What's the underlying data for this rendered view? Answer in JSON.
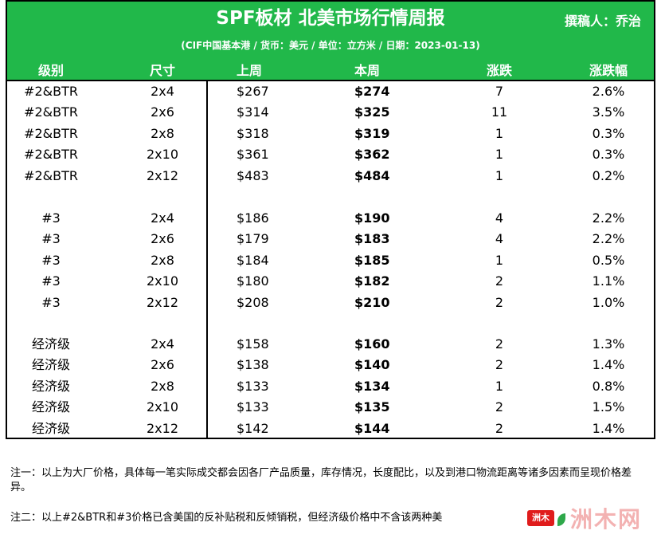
{
  "header": {
    "title": "SPF板材 北美市场行情周报",
    "author": "撰稿人：乔治",
    "subtitle": "(CIF中国基本港 / 货币：美元 / 单位：立方米 / 日期：2023-01-13)",
    "background_color": "#21b84a"
  },
  "columns": [
    "级别",
    "尺寸",
    "上周",
    "本周",
    "涨跌",
    "涨跌幅"
  ],
  "groups": [
    {
      "rows": [
        {
          "grade": "#2&BTR",
          "size": "2x4",
          "last_week": "$267",
          "this_week": "$274",
          "change": "7",
          "pct": "2.6%"
        },
        {
          "grade": "#2&BTR",
          "size": "2x6",
          "last_week": "$314",
          "this_week": "$325",
          "change": "11",
          "pct": "3.5%"
        },
        {
          "grade": "#2&BTR",
          "size": "2x8",
          "last_week": "$318",
          "this_week": "$319",
          "change": "1",
          "pct": "0.3%"
        },
        {
          "grade": "#2&BTR",
          "size": "2x10",
          "last_week": "$361",
          "this_week": "$362",
          "change": "1",
          "pct": "0.3%"
        },
        {
          "grade": "#2&BTR",
          "size": "2x12",
          "last_week": "$483",
          "this_week": "$484",
          "change": "1",
          "pct": "0.2%"
        }
      ]
    },
    {
      "rows": [
        {
          "grade": "#3",
          "size": "2x4",
          "last_week": "$186",
          "this_week": "$190",
          "change": "4",
          "pct": "2.2%"
        },
        {
          "grade": "#3",
          "size": "2x6",
          "last_week": "$179",
          "this_week": "$183",
          "change": "4",
          "pct": "2.2%"
        },
        {
          "grade": "#3",
          "size": "2x8",
          "last_week": "$184",
          "this_week": "$185",
          "change": "1",
          "pct": "0.5%"
        },
        {
          "grade": "#3",
          "size": "2x10",
          "last_week": "$180",
          "this_week": "$182",
          "change": "2",
          "pct": "1.1%"
        },
        {
          "grade": "#3",
          "size": "2x12",
          "last_week": "$208",
          "this_week": "$210",
          "change": "2",
          "pct": "1.0%"
        }
      ]
    },
    {
      "rows": [
        {
          "grade": "经济级",
          "size": "2x4",
          "last_week": "$158",
          "this_week": "$160",
          "change": "2",
          "pct": "1.3%"
        },
        {
          "grade": "经济级",
          "size": "2x6",
          "last_week": "$138",
          "this_week": "$140",
          "change": "2",
          "pct": "1.4%"
        },
        {
          "grade": "经济级",
          "size": "2x8",
          "last_week": "$133",
          "this_week": "$134",
          "change": "1",
          "pct": "0.8%"
        },
        {
          "grade": "经济级",
          "size": "2x10",
          "last_week": "$133",
          "this_week": "$135",
          "change": "2",
          "pct": "1.5%"
        },
        {
          "grade": "经济级",
          "size": "2x12",
          "last_week": "$142",
          "this_week": "$144",
          "change": "2",
          "pct": "1.4%"
        }
      ]
    }
  ],
  "notes": {
    "note1": "注一：以上为大厂价格，具体每一笔实际成交都会因各厂产品质量，库存情况，长度配比，以及到港口物流距离等诸多因素而呈现价格差异。",
    "note2": "注二：以上#2&BTR和#3价格已含美国的反补贴税和反倾销税，但经济级价格中不含该两种美"
  },
  "watermark": {
    "badge": "洲木",
    "text": "洲木网"
  }
}
